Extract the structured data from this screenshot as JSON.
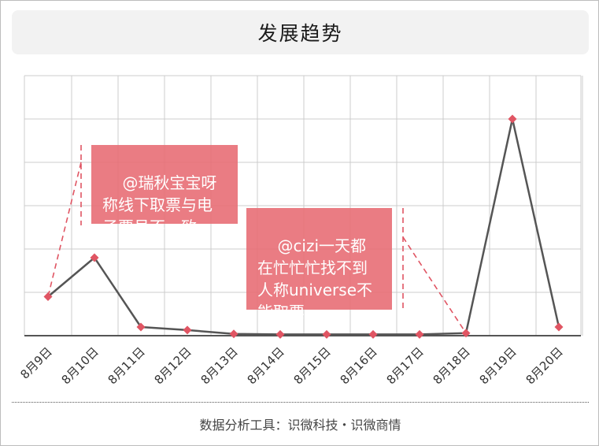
{
  "title": "发展趋势",
  "footer": "数据分析工具：识微科技・识微商情",
  "chart_data": {
    "type": "line",
    "categories": [
      "8月9日",
      "8月10日",
      "8月11日",
      "8月12日",
      "8月13日",
      "8月14日",
      "8月15日",
      "8月16日",
      "8月17日",
      "8月18日",
      "8月19日",
      "8月20日"
    ],
    "series": [
      {
        "values": [
          9,
          18,
          2,
          1.3,
          0.4,
          0.3,
          0.3,
          0.3,
          0.3,
          0.6,
          50,
          2
        ]
      }
    ],
    "ylim": [
      0,
      60
    ],
    "grid": true,
    "line_color": "#555555",
    "marker_color": "#e05563",
    "annotations": [
      {
        "text": "@瑞秋宝宝呀 称线下取票与电子票号不一致",
        "category_index": 0
      },
      {
        "text": "@cizi一天都在忙忙忙找不到人称universe不能取票",
        "category_index": 9
      }
    ]
  }
}
